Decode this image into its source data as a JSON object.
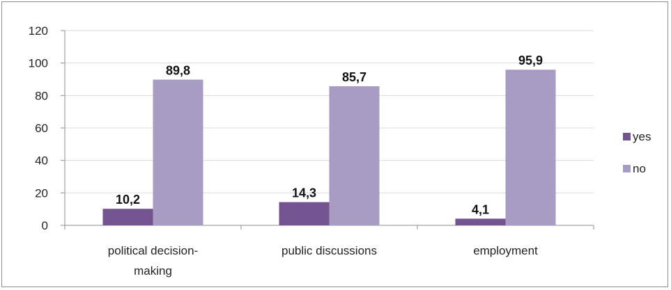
{
  "chart_data": {
    "type": "bar",
    "categories": [
      "political decision-making",
      "public discussions",
      "employment"
    ],
    "category_lines": [
      [
        "political decision-",
        "making"
      ],
      [
        "public discussions"
      ],
      [
        "employment"
      ]
    ],
    "series": [
      {
        "name": "yes",
        "values": [
          10.2,
          14.3,
          4.1
        ],
        "labels": [
          "10,2",
          "14,3",
          "4,1"
        ],
        "color": "#735491"
      },
      {
        "name": "no",
        "values": [
          89.8,
          85.7,
          95.9
        ],
        "labels": [
          "89,8",
          "85,7",
          "95,9"
        ],
        "color": "#a89bc4"
      }
    ],
    "ylim": [
      0,
      120
    ],
    "yticks": [
      0,
      20,
      40,
      60,
      80,
      100,
      120
    ],
    "grid": true,
    "legend_position": "right"
  }
}
